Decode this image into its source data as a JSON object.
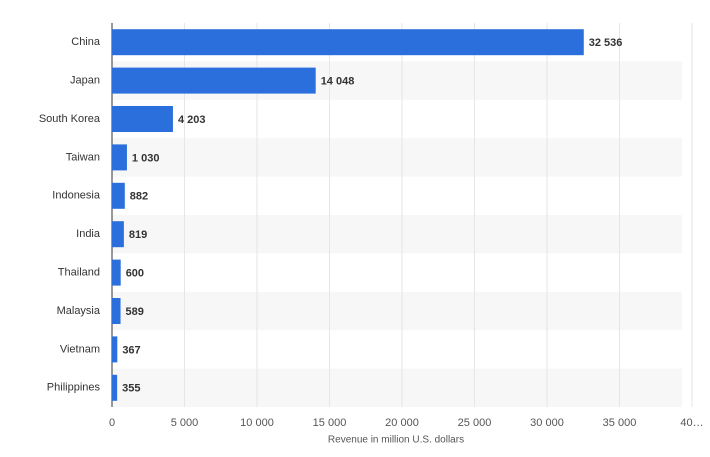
{
  "chart_data": {
    "type": "bar",
    "orientation": "horizontal",
    "x_label": "Revenue in million U.S. dollars",
    "categories": [
      "China",
      "Japan",
      "South Korea",
      "Taiwan",
      "Indonesia",
      "India",
      "Thailand",
      "Malaysia",
      "Vietnam",
      "Philippines"
    ],
    "values": [
      32536,
      14048,
      4203,
      1030,
      882,
      819,
      600,
      589,
      367,
      355
    ],
    "value_labels": [
      "32 536",
      "14 048",
      "4 203",
      "1 030",
      "882",
      "819",
      "600",
      "589",
      "367",
      "355"
    ],
    "color": "#2a6fdb",
    "xlim": [
      0,
      40000
    ],
    "xticks": [
      0,
      {
        "value": 5000,
        "label": "5 000"
      },
      {
        "value": 10000,
        "label": "10 000"
      },
      {
        "value": 15000,
        "label": "15 000"
      },
      {
        "value": 20000,
        "label": "20 000"
      },
      {
        "value": 25000,
        "label": "25 000"
      },
      {
        "value": 30000,
        "label": "30 000"
      },
      {
        "value": 35000,
        "label": "35 000"
      },
      {
        "value": 40000,
        "label": "40…"
      }
    ],
    "grid": true
  }
}
